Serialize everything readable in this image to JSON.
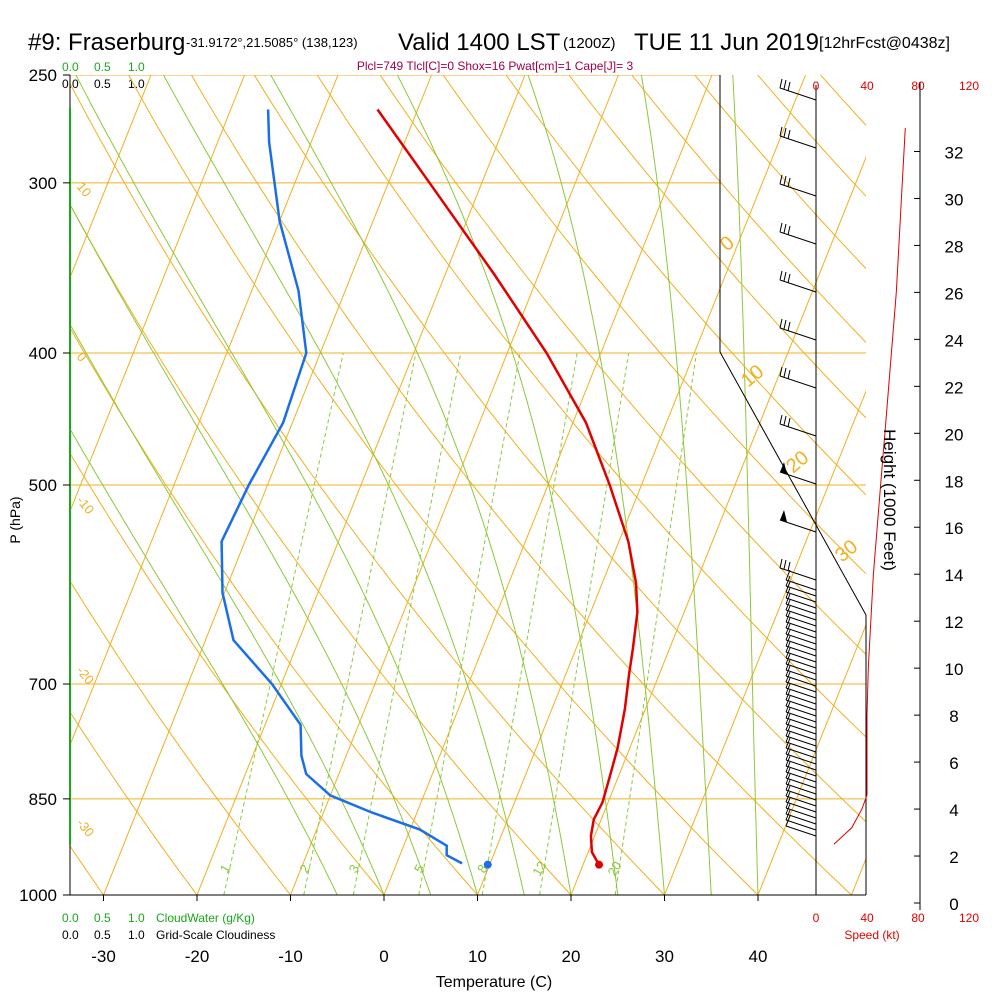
{
  "header": {
    "station": "#9: Fraserburg",
    "coords": "-31.9172°,21.5085° (138,123)",
    "valid": "Valid 1400 LST",
    "zulu": "(1200Z)",
    "date": "TUE 11 Jun 2019",
    "forecast": "[12hrFcst@0438z]"
  },
  "indices": "Plcl=749 Tlcl[C]=0 Shox=16 Pwat[cm]=1 Cape[J]= 3",
  "left_scale": {
    "cloudwater_ticks": [
      "0.0",
      "0.5",
      "1.0"
    ],
    "cloudiness_ticks": [
      "0.0",
      "0.5",
      "1.0"
    ],
    "cloudwater_label": "CloudWater (g/Kg)",
    "cloudiness_label": "Grid-Scale Cloudiness"
  },
  "speed_axis": {
    "ticks": [
      "0",
      "40",
      "80",
      "120"
    ],
    "label": "Speed (kt)"
  },
  "colors": {
    "temperature": "#e00000",
    "dewpoint": "#1a6fe8",
    "isobar_isotherm": "#f0b020",
    "dry_adiabat": "#f0b020",
    "moist_adiabat": "#8cc83c",
    "mixing_ratio": "#8cc83c",
    "cloud": "#18a818",
    "indices_text": "#a0004a",
    "speed": "#e00000"
  },
  "chart_data": {
    "type": "line",
    "title": "#9: Fraserburg",
    "xlabel": "Temperature (C)",
    "ylabel": "P (hPa)",
    "y2label": "Height (1000 Feet)",
    "xlim": [
      -35,
      45
    ],
    "ylim": [
      1000,
      250
    ],
    "x_ticks": [
      -30,
      -20,
      -10,
      0,
      10,
      20,
      30,
      40
    ],
    "y_ticks": [
      250,
      300,
      400,
      500,
      700,
      850,
      1000
    ],
    "height_ticks": [
      0,
      2,
      4,
      6,
      8,
      10,
      12,
      14,
      16,
      18,
      20,
      22,
      24,
      26,
      28,
      30,
      32
    ],
    "skew_angle_note": "skew-T log-P",
    "isotherm_labels": [
      {
        "text": "10"
      },
      {
        "text": "0"
      },
      {
        "text": "-10"
      },
      {
        "text": "-20"
      },
      {
        "text": "-30"
      }
    ],
    "dry_adiabat_labels": [
      "0",
      "10",
      "20",
      "30"
    ],
    "mixing_ratio_labels": [
      "1",
      "2",
      "3",
      "5",
      "8",
      "12",
      "20"
    ],
    "series": [
      {
        "name": "Temperature",
        "points": [
          {
            "p": 950,
            "t": 21.7
          },
          {
            "p": 930,
            "t": 20.4
          },
          {
            "p": 905,
            "t": 19.6
          },
          {
            "p": 880,
            "t": 19.2
          },
          {
            "p": 855,
            "t": 19.4
          },
          {
            "p": 820,
            "t": 19.1
          },
          {
            "p": 780,
            "t": 18.7
          },
          {
            "p": 730,
            "t": 17.8
          },
          {
            "p": 690,
            "t": 16.8
          },
          {
            "p": 660,
            "t": 16.1
          },
          {
            "p": 620,
            "t": 15.0
          },
          {
            "p": 590,
            "t": 13.6
          },
          {
            "p": 550,
            "t": 11.0
          },
          {
            "p": 500,
            "t": 6.6
          },
          {
            "p": 450,
            "t": 1.4
          },
          {
            "p": 400,
            "t": -5.8
          },
          {
            "p": 350,
            "t": -14.8
          },
          {
            "p": 300,
            "t": -25.6
          },
          {
            "p": 265,
            "t": -34.3
          }
        ]
      },
      {
        "name": "Dewpoint",
        "points": [
          {
            "p": 948,
            "t": 7.0
          },
          {
            "p": 935,
            "t": 5.0
          },
          {
            "p": 920,
            "t": 4.6
          },
          {
            "p": 895,
            "t": 1.0
          },
          {
            "p": 870,
            "t": -4.8
          },
          {
            "p": 845,
            "t": -10.0
          },
          {
            "p": 815,
            "t": -13.5
          },
          {
            "p": 790,
            "t": -14.8
          },
          {
            "p": 750,
            "t": -16.2
          },
          {
            "p": 700,
            "t": -21.0
          },
          {
            "p": 650,
            "t": -27.0
          },
          {
            "p": 600,
            "t": -30.2
          },
          {
            "p": 550,
            "t": -32.5
          },
          {
            "p": 500,
            "t": -32.0
          },
          {
            "p": 450,
            "t": -31.0
          },
          {
            "p": 400,
            "t": -31.5
          },
          {
            "p": 360,
            "t": -35.0
          },
          {
            "p": 320,
            "t": -40.0
          },
          {
            "p": 280,
            "t": -44.5
          },
          {
            "p": 265,
            "t": -46.0
          }
        ]
      }
    ],
    "surface_markers": [
      {
        "name": "Temperature",
        "p": 950,
        "t": 21.7
      },
      {
        "name": "Dewpoint",
        "p": 950,
        "t": 9.8
      }
    ],
    "wind_barbs_note": "wind barbs on right side",
    "wind_speed_profile_kt": [
      {
        "h": 2.5,
        "s": 14
      },
      {
        "h": 3.2,
        "s": 28
      },
      {
        "h": 4.0,
        "s": 36
      },
      {
        "h": 4.6,
        "s": 40
      },
      {
        "h": 6.0,
        "s": 40
      },
      {
        "h": 8.0,
        "s": 40
      },
      {
        "h": 10.0,
        "s": 41
      },
      {
        "h": 12.0,
        "s": 43
      },
      {
        "h": 14.0,
        "s": 45
      },
      {
        "h": 16.0,
        "s": 48
      },
      {
        "h": 18.0,
        "s": 51
      },
      {
        "h": 20.0,
        "s": 54
      },
      {
        "h": 22.0,
        "s": 57
      },
      {
        "h": 24.0,
        "s": 60
      },
      {
        "h": 26.0,
        "s": 63
      },
      {
        "h": 28.0,
        "s": 65
      },
      {
        "h": 30.0,
        "s": 67
      },
      {
        "h": 32.0,
        "s": 69
      },
      {
        "h": 33.0,
        "s": 70
      }
    ]
  }
}
